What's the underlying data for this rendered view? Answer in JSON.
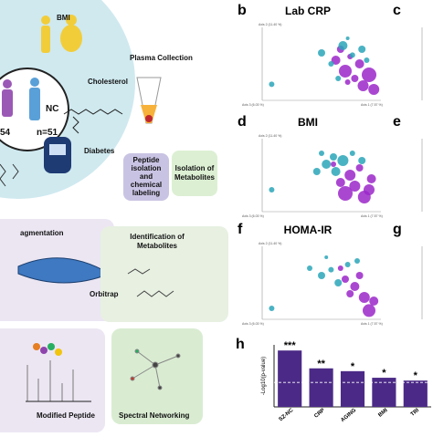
{
  "workflow": {
    "bmi": "BMI",
    "cholesterol": "Cholesterol",
    "diabetes": "Diabetes",
    "nc": "NC",
    "nc_n": "n=51",
    "sz_n": "54",
    "plasma_collection": "Plasma Collection",
    "peptide_box": [
      "Peptide",
      "isolation",
      "and",
      "chemical",
      "labeling"
    ],
    "metabolite_box": [
      "Isolation of",
      "Metabolites"
    ],
    "fragmentation": "agmentation",
    "orbitrap": "Orbitrap",
    "identification": [
      "Identification of",
      "Metabolites"
    ],
    "modified_peptide": "Modified Peptide",
    "spectral_networking": "Spectral Networking"
  },
  "pca_panels": [
    {
      "label": "b",
      "title": "Lab CRP",
      "x_label": "Axis 1 (7.57 %)",
      "y_label": "Axis 2 (11.40 %)",
      "z_label": "Axis 3 (6.03 %)",
      "side_label": "c",
      "series": [
        {
          "color": "#9b27c9",
          "x": [
            0.62,
            0.7,
            0.78,
            0.85,
            0.9,
            0.74,
            0.66,
            0.82,
            0.94,
            0.72
          ],
          "y": [
            0.55,
            0.4,
            0.3,
            0.2,
            0.35,
            0.6,
            0.7,
            0.5,
            0.15,
            0.25
          ],
          "sizes": [
            5,
            7,
            4,
            6,
            8,
            3,
            4,
            5,
            6,
            3
          ]
        },
        {
          "color": "#2aa6b8",
          "x": [
            0.5,
            0.58,
            0.68,
            0.76,
            0.84,
            0.64,
            0.72,
            0.08,
            0.88
          ],
          "y": [
            0.65,
            0.5,
            0.75,
            0.62,
            0.7,
            0.3,
            0.85,
            0.22,
            0.55
          ],
          "sizes": [
            4,
            3,
            5,
            3,
            4,
            3,
            2,
            3,
            3
          ]
        }
      ]
    },
    {
      "label": "d",
      "title": "BMI",
      "x_label": "Axis 1 (7.57 %)",
      "y_label": "Axis 2 (11.40 %)",
      "z_label": "Axis 3 (6.03 %)",
      "side_label": "e",
      "series": [
        {
          "color": "#9b27c9",
          "x": [
            0.7,
            0.78,
            0.86,
            0.92,
            0.74,
            0.82,
            0.66,
            0.9,
            0.6
          ],
          "y": [
            0.25,
            0.35,
            0.2,
            0.45,
            0.5,
            0.6,
            0.4,
            0.3,
            0.65
          ],
          "sizes": [
            8,
            6,
            7,
            5,
            6,
            4,
            5,
            6,
            3
          ]
        },
        {
          "color": "#2aa6b8",
          "x": [
            0.46,
            0.54,
            0.6,
            0.68,
            0.76,
            0.5,
            0.62,
            0.08,
            0.84
          ],
          "y": [
            0.55,
            0.65,
            0.75,
            0.7,
            0.8,
            0.8,
            0.55,
            0.3,
            0.7
          ],
          "sizes": [
            4,
            5,
            4,
            6,
            3,
            3,
            5,
            3,
            4
          ]
        }
      ]
    },
    {
      "label": "f",
      "title": "HOMA-IR",
      "x_label": "Axis 1 (7.57 %)",
      "y_label": "Axis 2 (11.40 %)",
      "z_label": "Axis 3 (6.03 %)",
      "side_label": "g",
      "series": [
        {
          "color": "#9b27c9",
          "x": [
            0.9,
            0.86,
            0.78,
            0.7,
            0.82,
            0.66,
            0.74,
            0.94
          ],
          "y": [
            0.12,
            0.3,
            0.45,
            0.55,
            0.6,
            0.7,
            0.35,
            0.25
          ],
          "sizes": [
            7,
            6,
            5,
            4,
            4,
            3,
            4,
            5
          ]
        },
        {
          "color": "#2aa6b8",
          "x": [
            0.4,
            0.5,
            0.58,
            0.64,
            0.72,
            0.8,
            0.54,
            0.08
          ],
          "y": [
            0.7,
            0.6,
            0.68,
            0.5,
            0.75,
            0.8,
            0.85,
            0.15
          ],
          "sizes": [
            3,
            4,
            3,
            4,
            3,
            3,
            2,
            3
          ]
        }
      ]
    }
  ],
  "chart_data": {
    "type": "bar",
    "label": "h",
    "y_label": "-Log10(p-value)",
    "categories": [
      "SZ-NC",
      "CRP",
      "AGING",
      "BMI",
      "TRI"
    ],
    "values": [
      3.0,
      2.05,
      1.9,
      1.55,
      1.4
    ],
    "value_labels": [
      "***",
      "**",
      "*",
      "*",
      "*"
    ],
    "color": "#4b2a87",
    "ylim": [
      0,
      3.3
    ],
    "reference_line": 1.3
  }
}
